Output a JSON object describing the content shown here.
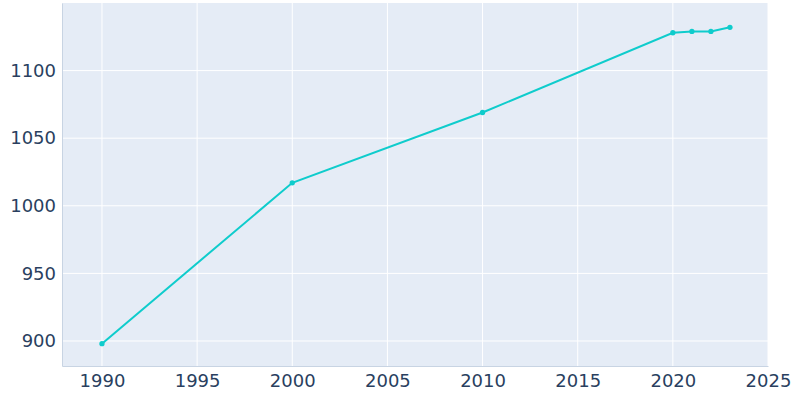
{
  "chart_data": {
    "type": "line",
    "x": [
      1990,
      2000,
      2010,
      2020,
      2021,
      2022,
      2023
    ],
    "values": [
      898,
      1017,
      1069,
      1128,
      1129,
      1129,
      1132
    ],
    "color": "#0fcccc",
    "marker": "circle",
    "line_style": "solid",
    "grid": true,
    "xlim": [
      1987.9,
      2025
    ],
    "xticks": [
      1990,
      1995,
      2000,
      2005,
      2010,
      2015,
      2020,
      2025
    ],
    "ylim": [
      881.5,
      1150
    ],
    "yticks": [
      900,
      950,
      1000,
      1050,
      1100
    ]
  }
}
